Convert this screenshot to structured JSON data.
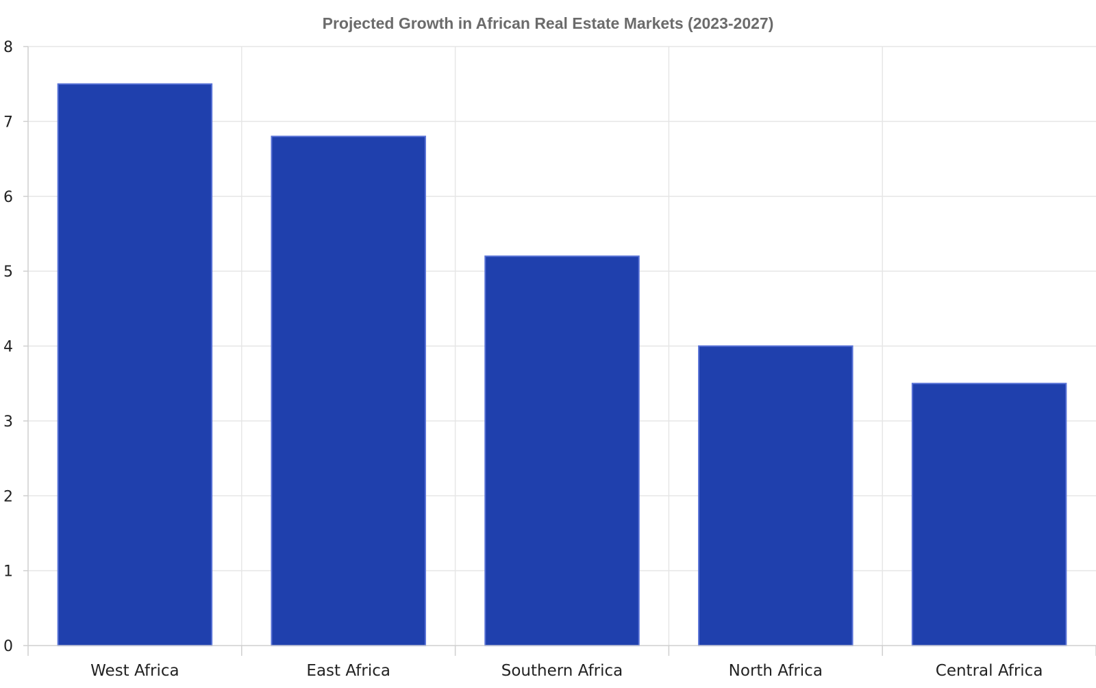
{
  "chart_data": {
    "type": "bar",
    "title": "Projected Growth in African Real Estate Markets (2023-2027)",
    "xlabel": "",
    "ylabel": "",
    "categories": [
      "West Africa",
      "East Africa",
      "Southern Africa",
      "North Africa",
      "Central Africa"
    ],
    "values": [
      7.5,
      6.8,
      5.2,
      4.0,
      3.5
    ],
    "ylim": [
      0,
      8
    ],
    "yticks": [
      "0",
      "1",
      "2",
      "3",
      "4",
      "5",
      "6",
      "7",
      "8"
    ],
    "grid": true,
    "legend": "none",
    "colors": {
      "bar": "#1f40ad",
      "bar_outline": "#5872d6",
      "title": "#6b6b6b"
    }
  }
}
